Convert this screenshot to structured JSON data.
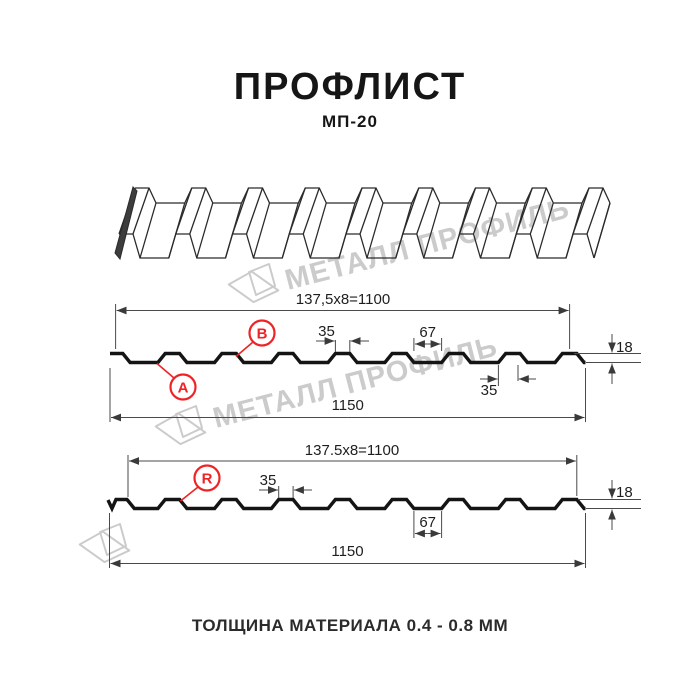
{
  "header": {
    "title": "ПРОФЛИСТ",
    "subtitle": "МП-20"
  },
  "watermark": {
    "brand": "МЕТАЛЛ ПРОФИЛЬ"
  },
  "colors": {
    "accent_red": "#ee2326",
    "drawing_line": "#141414",
    "dim_line": "#4a4a4a",
    "watermark_gray": "#c6c6c6"
  },
  "profiles": {
    "top": {
      "coverage": "137,5x8=1100",
      "overall_width": "1150",
      "crest_width": "35",
      "valley_width": "67",
      "height": "18",
      "crest_width_bottom": "35",
      "labels": {
        "a": "A",
        "b": "B"
      }
    },
    "bottom": {
      "coverage": "137.5x8=1100",
      "overall_width": "1150",
      "crest_width": "35",
      "valley_width": "67",
      "height": "18",
      "labels": {
        "r": "R"
      }
    }
  },
  "footer": {
    "note": "ТОЛЩИНА МАТЕРИАЛА 0.4 - 0.8 ММ"
  }
}
